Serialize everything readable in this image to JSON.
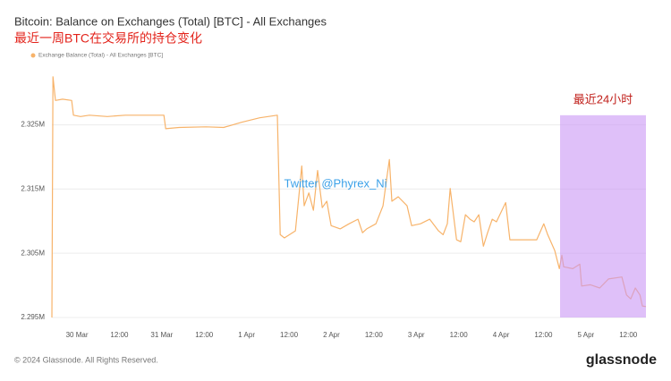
{
  "chart_data": {
    "type": "line",
    "title": "Bitcoin: Balance on Exchanges (Total) [BTC] - All Exchanges",
    "subtitle": "最近一周BTC在交易所的持仓变化",
    "series": [
      {
        "name": "Exchange Balance (Total) - All Exchanges [BTC]",
        "color": "#f7b36a",
        "x": [
          -7.1,
          -6.8,
          -6.1,
          -4.1,
          -1.5,
          -1.0,
          1.0,
          3.5,
          8.6,
          13.7,
          18.7,
          24.6,
          25.1,
          28.9,
          36.5,
          41.5,
          46.6,
          51.7,
          56.7,
          57.5,
          58.7,
          61.8,
          63.0,
          63.6,
          64.3,
          65.6,
          66.9,
          68.1,
          69.4,
          70.7,
          71.9,
          74.5,
          77.0,
          79.5,
          80.8,
          82.0,
          84.6,
          86.6,
          87.6,
          88.4,
          89.1,
          90.9,
          93.4,
          94.7,
          97.2,
          99.8,
          102.3,
          103.6,
          104.8,
          105.6,
          107.4,
          108.6,
          109.9,
          111.2,
          112.4,
          113.7,
          115.0,
          116.2,
          117.5,
          118.7,
          121.3,
          122.5,
          125.1,
          128.9,
          130.1,
          132.1,
          133.2,
          135.2,
          136.5,
          137.2,
          137.7,
          140.3,
          142.3,
          142.8,
          145.3,
          147.9,
          150.4,
          154.2,
          155.5,
          156.7,
          158.0,
          159.3,
          160.0,
          161.0
        ],
        "values": [
          2295000,
          2332500,
          2328800,
          2329000,
          2328800,
          2326500,
          2326300,
          2326500,
          2326300,
          2326500,
          2326500,
          2326500,
          2324400,
          2324600,
          2324700,
          2324600,
          2325400,
          2326100,
          2326500,
          2307900,
          2307400,
          2308500,
          2315100,
          2318600,
          2312400,
          2314400,
          2311700,
          2317900,
          2312100,
          2313100,
          2309300,
          2308800,
          2309600,
          2310300,
          2308200,
          2308800,
          2309600,
          2312400,
          2316500,
          2319600,
          2313100,
          2313800,
          2312400,
          2309300,
          2309600,
          2310300,
          2308500,
          2307900,
          2309600,
          2315100,
          2307100,
          2306800,
          2311000,
          2310300,
          2309900,
          2311000,
          2306100,
          2308200,
          2310300,
          2309900,
          2312900,
          2307100,
          2307100,
          2307100,
          2307100,
          2309600,
          2307900,
          2305400,
          2302600,
          2304700,
          2302900,
          2302600,
          2303300,
          2299900,
          2300100,
          2299600,
          2301000,
          2301300,
          2298500,
          2297900,
          2299600,
          2298500,
          2296800,
          2296700
        ]
      }
    ],
    "xlim": [
      -7.1,
      161.0
    ],
    "xticks": [
      {
        "value": 0,
        "label": "30 Mar"
      },
      {
        "value": 12,
        "label": "12:00"
      },
      {
        "value": 24,
        "label": "31 Mar"
      },
      {
        "value": 36,
        "label": "12:00"
      },
      {
        "value": 48,
        "label": "1 Apr"
      },
      {
        "value": 60,
        "label": "12:00"
      },
      {
        "value": 72,
        "label": "2 Apr"
      },
      {
        "value": 84,
        "label": "12:00"
      },
      {
        "value": 96,
        "label": "3 Apr"
      },
      {
        "value": 108,
        "label": "12:00"
      },
      {
        "value": 120,
        "label": "4 Apr"
      },
      {
        "value": 132,
        "label": "12:00"
      },
      {
        "value": 144,
        "label": "5 Apr"
      },
      {
        "value": 156,
        "label": "12:00"
      }
    ],
    "ylim": [
      2294300,
      2334000
    ],
    "yticks": [
      {
        "value": 2295000,
        "label": "2.295M"
      },
      {
        "value": 2305000,
        "label": "2.305M"
      },
      {
        "value": 2315000,
        "label": "2.315M"
      },
      {
        "value": 2325000,
        "label": "2.325M"
      }
    ],
    "grid": true,
    "highlight": {
      "label": "最近24小时",
      "x": [
        136.7,
        161.0
      ],
      "y": [
        2295000,
        2326500
      ],
      "color": "#c996f5"
    },
    "watermark": "Twitter @Phyrex_Ni",
    "footer": "© 2024 Glassnode. All Rights Reserved.",
    "logo": "glassnode"
  }
}
